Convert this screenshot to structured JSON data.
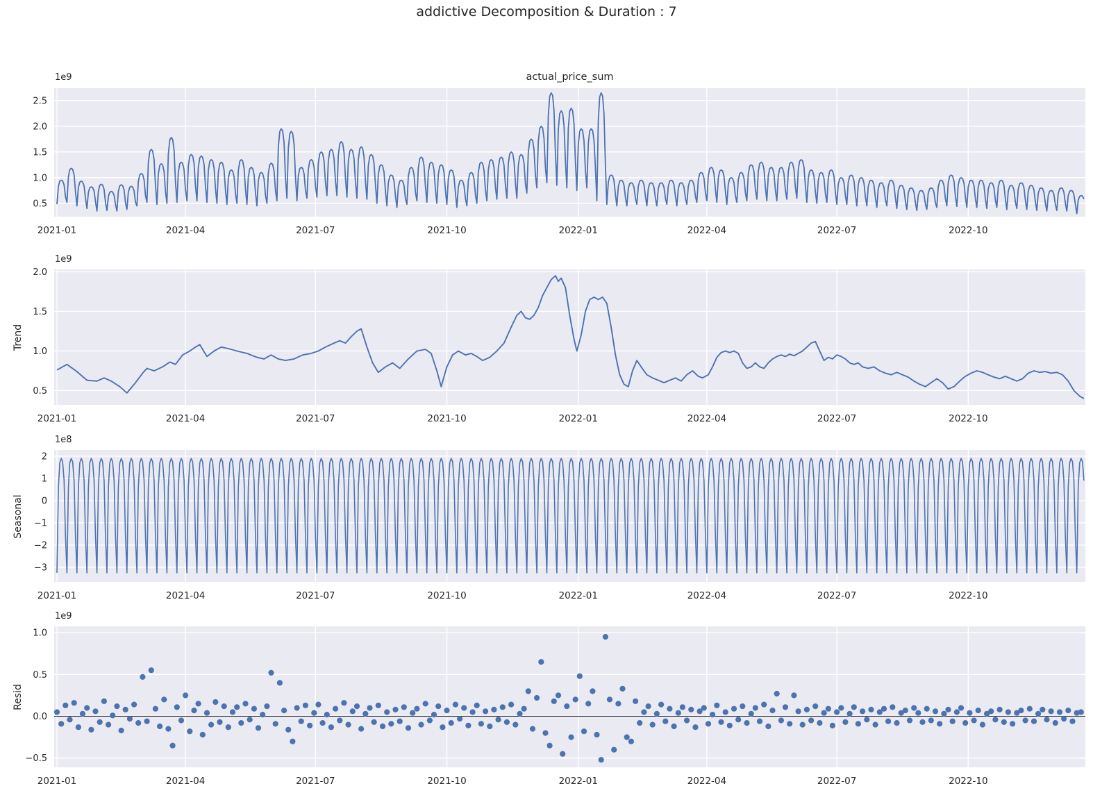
{
  "title": "addictive Decomposition & Duration : 7",
  "colors": {
    "line": "#4c72b0",
    "scatter": "#4c72b0",
    "axes_background": "#eaeaf2",
    "grid": "#ffffff",
    "text": "#262626",
    "zero_line": "#262626",
    "figure_background": "#ffffff"
  },
  "x_axis": {
    "tick_labels": [
      "2021-01",
      "2021-04",
      "2021-07",
      "2021-10",
      "2022-01",
      "2022-04",
      "2022-07",
      "2022-10"
    ],
    "tick_days": [
      0,
      90,
      181,
      273,
      365,
      455,
      546,
      638
    ],
    "domain_days": [
      0,
      720
    ]
  },
  "chart_data": [
    {
      "type": "line",
      "panel": "observed",
      "title": "actual_price_sum",
      "offset_label": "1e9",
      "unit_multiplier": "1e9",
      "ylim": [
        0.24,
        2.74
      ],
      "ytick_values": [
        0.5,
        1.0,
        1.5,
        2.0,
        2.5
      ],
      "ytick_labels": [
        "0.5",
        "1.0",
        "1.5",
        "2.0",
        "2.5"
      ],
      "grid": true,
      "weekly_day_step": 7,
      "cycle_norm": [
        0,
        0.747,
        0.961,
        1.0,
        0.971,
        0.806,
        0.32
      ],
      "weekly_peaks": [
        0.95,
        1.18,
        0.93,
        0.82,
        0.87,
        0.73,
        0.86,
        0.83,
        1.08,
        1.55,
        1.27,
        1.78,
        1.3,
        1.45,
        1.42,
        1.35,
        1.3,
        1.15,
        1.35,
        1.2,
        1.1,
        1.28,
        1.95,
        1.9,
        1.2,
        1.35,
        1.5,
        1.55,
        1.7,
        1.55,
        1.6,
        1.45,
        1.25,
        1.05,
        0.95,
        1.2,
        1.4,
        1.3,
        1.25,
        1.15,
        0.95,
        1.1,
        1.3,
        1.35,
        1.4,
        1.5,
        1.45,
        1.75,
        2.0,
        2.65,
        2.3,
        2.35,
        1.95,
        1.95,
        2.65,
        1.05,
        0.95,
        0.9,
        0.95,
        0.9,
        0.9,
        0.95,
        0.9,
        0.95,
        1.1,
        1.2,
        1.15,
        1.0,
        1.1,
        1.25,
        1.3,
        1.2,
        1.2,
        1.3,
        1.35,
        1.15,
        1.1,
        1.15,
        1.0,
        1.05,
        1.0,
        0.95,
        0.9,
        0.95,
        0.85,
        0.8,
        0.75,
        0.8,
        0.95,
        1.05,
        1.0,
        0.95,
        0.95,
        0.9,
        0.95,
        0.85,
        0.9,
        0.85,
        0.8,
        0.75,
        0.8,
        0.75,
        0.65
      ],
      "weekly_troughs": [
        0.48,
        0.52,
        0.45,
        0.4,
        0.35,
        0.36,
        0.35,
        0.38,
        0.45,
        0.52,
        0.48,
        0.5,
        0.52,
        0.55,
        0.55,
        0.52,
        0.5,
        0.48,
        0.5,
        0.48,
        0.45,
        0.5,
        0.55,
        0.6,
        0.55,
        0.6,
        0.62,
        0.65,
        0.65,
        0.62,
        0.6,
        0.58,
        0.5,
        0.45,
        0.42,
        0.48,
        0.55,
        0.52,
        0.5,
        0.48,
        0.42,
        0.45,
        0.5,
        0.55,
        0.58,
        0.6,
        0.6,
        0.7,
        0.8,
        0.9,
        0.85,
        0.8,
        0.75,
        0.8,
        0.55,
        0.48,
        0.45,
        0.45,
        0.48,
        0.45,
        0.45,
        0.48,
        0.45,
        0.48,
        0.52,
        0.55,
        0.52,
        0.48,
        0.52,
        0.55,
        0.58,
        0.55,
        0.55,
        0.58,
        0.6,
        0.52,
        0.5,
        0.52,
        0.48,
        0.48,
        0.45,
        0.45,
        0.42,
        0.45,
        0.4,
        0.38,
        0.36,
        0.38,
        0.42,
        0.45,
        0.44,
        0.42,
        0.42,
        0.4,
        0.42,
        0.38,
        0.4,
        0.38,
        0.36,
        0.35,
        0.36,
        0.35,
        0.3
      ]
    },
    {
      "type": "line",
      "panel": "trend",
      "ylabel": "Trend",
      "offset_label": "1e9",
      "unit_multiplier": "1e9",
      "ylim": [
        0.32,
        2.03
      ],
      "ytick_values": [
        0.5,
        1.0,
        1.5,
        2.0
      ],
      "ytick_labels": [
        "0.5",
        "1.0",
        "1.5",
        "2.0"
      ],
      "grid": true,
      "points_day_value": [
        [
          0,
          0.76
        ],
        [
          7,
          0.83
        ],
        [
          14,
          0.74
        ],
        [
          21,
          0.63
        ],
        [
          28,
          0.62
        ],
        [
          33,
          0.66
        ],
        [
          38,
          0.62
        ],
        [
          44,
          0.55
        ],
        [
          49,
          0.47
        ],
        [
          55,
          0.6
        ],
        [
          60,
          0.72
        ],
        [
          63,
          0.78
        ],
        [
          68,
          0.75
        ],
        [
          74,
          0.8
        ],
        [
          79,
          0.86
        ],
        [
          83,
          0.83
        ],
        [
          88,
          0.95
        ],
        [
          93,
          1.0
        ],
        [
          97,
          1.05
        ],
        [
          100,
          1.08
        ],
        [
          105,
          0.93
        ],
        [
          110,
          1.0
        ],
        [
          115,
          1.05
        ],
        [
          120,
          1.03
        ],
        [
          126,
          1.0
        ],
        [
          133,
          0.97
        ],
        [
          140,
          0.92
        ],
        [
          145,
          0.9
        ],
        [
          150,
          0.95
        ],
        [
          155,
          0.9
        ],
        [
          160,
          0.88
        ],
        [
          166,
          0.9
        ],
        [
          172,
          0.95
        ],
        [
          178,
          0.97
        ],
        [
          183,
          1.0
        ],
        [
          188,
          1.05
        ],
        [
          194,
          1.1
        ],
        [
          198,
          1.13
        ],
        [
          202,
          1.1
        ],
        [
          206,
          1.18
        ],
        [
          210,
          1.25
        ],
        [
          213,
          1.28
        ],
        [
          217,
          1.05
        ],
        [
          221,
          0.85
        ],
        [
          225,
          0.73
        ],
        [
          230,
          0.8
        ],
        [
          235,
          0.85
        ],
        [
          240,
          0.78
        ],
        [
          246,
          0.9
        ],
        [
          252,
          1.0
        ],
        [
          258,
          1.02
        ],
        [
          262,
          0.97
        ],
        [
          266,
          0.75
        ],
        [
          269,
          0.55
        ],
        [
          273,
          0.8
        ],
        [
          277,
          0.95
        ],
        [
          281,
          1.0
        ],
        [
          286,
          0.95
        ],
        [
          290,
          0.97
        ],
        [
          294,
          0.93
        ],
        [
          298,
          0.88
        ],
        [
          303,
          0.92
        ],
        [
          308,
          1.0
        ],
        [
          313,
          1.1
        ],
        [
          318,
          1.3
        ],
        [
          322,
          1.45
        ],
        [
          325,
          1.5
        ],
        [
          328,
          1.42
        ],
        [
          331,
          1.4
        ],
        [
          334,
          1.45
        ],
        [
          337,
          1.55
        ],
        [
          340,
          1.7
        ],
        [
          343,
          1.8
        ],
        [
          346,
          1.9
        ],
        [
          349,
          1.95
        ],
        [
          351,
          1.88
        ],
        [
          353,
          1.92
        ],
        [
          356,
          1.8
        ],
        [
          359,
          1.45
        ],
        [
          362,
          1.15
        ],
        [
          364,
          1.0
        ],
        [
          367,
          1.2
        ],
        [
          370,
          1.5
        ],
        [
          373,
          1.65
        ],
        [
          376,
          1.68
        ],
        [
          379,
          1.65
        ],
        [
          382,
          1.68
        ],
        [
          385,
          1.6
        ],
        [
          388,
          1.3
        ],
        [
          391,
          0.95
        ],
        [
          394,
          0.7
        ],
        [
          397,
          0.58
        ],
        [
          400,
          0.55
        ],
        [
          403,
          0.75
        ],
        [
          406,
          0.88
        ],
        [
          409,
          0.8
        ],
        [
          413,
          0.7
        ],
        [
          417,
          0.66
        ],
        [
          421,
          0.63
        ],
        [
          425,
          0.6
        ],
        [
          429,
          0.63
        ],
        [
          433,
          0.66
        ],
        [
          437,
          0.62
        ],
        [
          441,
          0.7
        ],
        [
          445,
          0.75
        ],
        [
          449,
          0.68
        ],
        [
          452,
          0.66
        ],
        [
          456,
          0.7
        ],
        [
          459,
          0.8
        ],
        [
          462,
          0.92
        ],
        [
          465,
          0.98
        ],
        [
          468,
          1.0
        ],
        [
          471,
          0.98
        ],
        [
          474,
          1.0
        ],
        [
          477,
          0.97
        ],
        [
          480,
          0.85
        ],
        [
          483,
          0.78
        ],
        [
          486,
          0.8
        ],
        [
          489,
          0.85
        ],
        [
          492,
          0.8
        ],
        [
          495,
          0.78
        ],
        [
          498,
          0.85
        ],
        [
          501,
          0.9
        ],
        [
          504,
          0.93
        ],
        [
          507,
          0.95
        ],
        [
          510,
          0.93
        ],
        [
          513,
          0.96
        ],
        [
          516,
          0.94
        ],
        [
          519,
          0.97
        ],
        [
          522,
          1.0
        ],
        [
          525,
          1.05
        ],
        [
          528,
          1.1
        ],
        [
          531,
          1.12
        ],
        [
          534,
          1.0
        ],
        [
          537,
          0.88
        ],
        [
          540,
          0.92
        ],
        [
          543,
          0.9
        ],
        [
          546,
          0.95
        ],
        [
          549,
          0.93
        ],
        [
          552,
          0.9
        ],
        [
          555,
          0.85
        ],
        [
          558,
          0.83
        ],
        [
          561,
          0.85
        ],
        [
          564,
          0.8
        ],
        [
          568,
          0.78
        ],
        [
          572,
          0.8
        ],
        [
          576,
          0.75
        ],
        [
          580,
          0.72
        ],
        [
          584,
          0.7
        ],
        [
          588,
          0.73
        ],
        [
          592,
          0.7
        ],
        [
          596,
          0.67
        ],
        [
          600,
          0.62
        ],
        [
          604,
          0.58
        ],
        [
          608,
          0.55
        ],
        [
          612,
          0.6
        ],
        [
          616,
          0.65
        ],
        [
          620,
          0.6
        ],
        [
          624,
          0.52
        ],
        [
          628,
          0.55
        ],
        [
          632,
          0.62
        ],
        [
          636,
          0.68
        ],
        [
          640,
          0.72
        ],
        [
          644,
          0.75
        ],
        [
          648,
          0.73
        ],
        [
          652,
          0.7
        ],
        [
          656,
          0.67
        ],
        [
          660,
          0.65
        ],
        [
          664,
          0.68
        ],
        [
          668,
          0.65
        ],
        [
          672,
          0.62
        ],
        [
          676,
          0.65
        ],
        [
          680,
          0.72
        ],
        [
          684,
          0.75
        ],
        [
          688,
          0.73
        ],
        [
          692,
          0.74
        ],
        [
          696,
          0.72
        ],
        [
          700,
          0.73
        ],
        [
          704,
          0.7
        ],
        [
          708,
          0.62
        ],
        [
          712,
          0.5
        ],
        [
          716,
          0.43
        ],
        [
          719,
          0.4
        ]
      ]
    },
    {
      "type": "line",
      "panel": "seasonal",
      "ylabel": "Seasonal",
      "offset_label": "1e8",
      "unit_multiplier": "1e8",
      "ylim": [
        -3.66,
        2.28
      ],
      "ytick_values": [
        -3,
        -2,
        -1,
        0,
        1,
        2
      ],
      "ytick_labels": [
        "-3",
        "-2",
        "-1",
        "0",
        "1",
        "2"
      ],
      "grid": true,
      "period_days": 7,
      "cycle_values": [
        -3.25,
        0.6,
        1.7,
        1.9,
        1.75,
        0.9,
        -1.6
      ]
    },
    {
      "type": "scatter",
      "panel": "resid",
      "ylabel": "Resid",
      "offset_label": "1e9",
      "unit_multiplier": "1e9",
      "ylim": [
        -0.61,
        1.075
      ],
      "ytick_values": [
        -0.5,
        0.0,
        0.5,
        1.0
      ],
      "ytick_labels": [
        "-0.5",
        "0.0",
        "0.5",
        "1.0"
      ],
      "grid": true,
      "zero_line": true,
      "day_step": 3,
      "values": [
        0.05,
        -0.09,
        0.13,
        -0.04,
        0.16,
        -0.13,
        0.03,
        0.1,
        -0.16,
        0.06,
        -0.07,
        0.18,
        -0.1,
        0.01,
        0.12,
        -0.17,
        0.08,
        -0.03,
        0.14,
        -0.08,
        0.47,
        -0.06,
        0.55,
        0.09,
        -0.12,
        0.2,
        -0.15,
        -0.35,
        0.11,
        -0.05,
        0.25,
        -0.18,
        0.07,
        0.15,
        -0.22,
        0.04,
        -0.1,
        0.17,
        -0.07,
        0.12,
        -0.13,
        0.05,
        0.11,
        -0.08,
        0.15,
        -0.04,
        0.09,
        -0.14,
        0.02,
        0.12,
        0.52,
        -0.09,
        0.4,
        0.07,
        -0.16,
        -0.3,
        0.1,
        -0.06,
        0.13,
        -0.11,
        0.04,
        0.14,
        -0.08,
        0.02,
        -0.13,
        0.09,
        -0.05,
        0.16,
        -0.1,
        0.06,
        0.12,
        -0.15,
        0.03,
        0.1,
        -0.07,
        0.13,
        -0.12,
        0.05,
        -0.09,
        0.08,
        -0.06,
        0.11,
        -0.14,
        0.04,
        0.09,
        -0.1,
        0.15,
        -0.05,
        0.02,
        0.12,
        -0.13,
        0.07,
        -0.08,
        0.14,
        -0.03,
        0.1,
        -0.11,
        0.05,
        0.13,
        -0.09,
        0.06,
        -0.12,
        0.08,
        -0.04,
        0.11,
        -0.07,
        0.14,
        -0.1,
        0.03,
        0.09,
        0.3,
        -0.15,
        0.22,
        0.65,
        -0.2,
        -0.35,
        0.18,
        0.25,
        -0.45,
        0.12,
        -0.25,
        0.2,
        0.48,
        -0.18,
        0.15,
        0.3,
        -0.22,
        -0.52,
        0.95,
        0.2,
        -0.4,
        0.15,
        0.33,
        -0.25,
        -0.3,
        0.18,
        -0.08,
        0.05,
        0.12,
        -0.1,
        0.03,
        0.14,
        -0.06,
        0.09,
        -0.12,
        0.04,
        0.11,
        -0.05,
        0.08,
        -0.13,
        0.06,
        0.1,
        -0.09,
        0.02,
        0.13,
        -0.07,
        0.05,
        -0.11,
        0.09,
        -0.04,
        0.12,
        -0.08,
        0.03,
        0.1,
        -0.06,
        0.14,
        -0.12,
        0.07,
        0.27,
        -0.05,
        0.11,
        -0.09,
        0.25,
        0.06,
        -0.1,
        0.08,
        -0.05,
        0.12,
        -0.08,
        0.04,
        0.09,
        -0.11,
        0.05,
        0.1,
        -0.07,
        0.03,
        0.11,
        -0.09,
        0.06,
        -0.04,
        0.08,
        -0.1,
        0.05,
        0.09,
        -0.06,
        0.11,
        -0.08,
        0.04,
        0.07,
        -0.05,
        0.1,
        0.04,
        -0.07,
        0.09,
        -0.05,
        0.06,
        -0.09,
        0.03,
        0.08,
        -0.06,
        0.05,
        0.1,
        -0.08,
        0.04,
        -0.05,
        0.07,
        -0.1,
        0.03,
        0.06,
        -0.04,
        0.08,
        -0.07,
        0.05,
        -0.09,
        0.04,
        0.07,
        -0.05,
        0.09,
        -0.06,
        0.03,
        0.08,
        -0.04,
        0.06,
        -0.08,
        0.05,
        -0.03,
        0.07,
        -0.06,
        0.04,
        0.05
      ]
    }
  ]
}
